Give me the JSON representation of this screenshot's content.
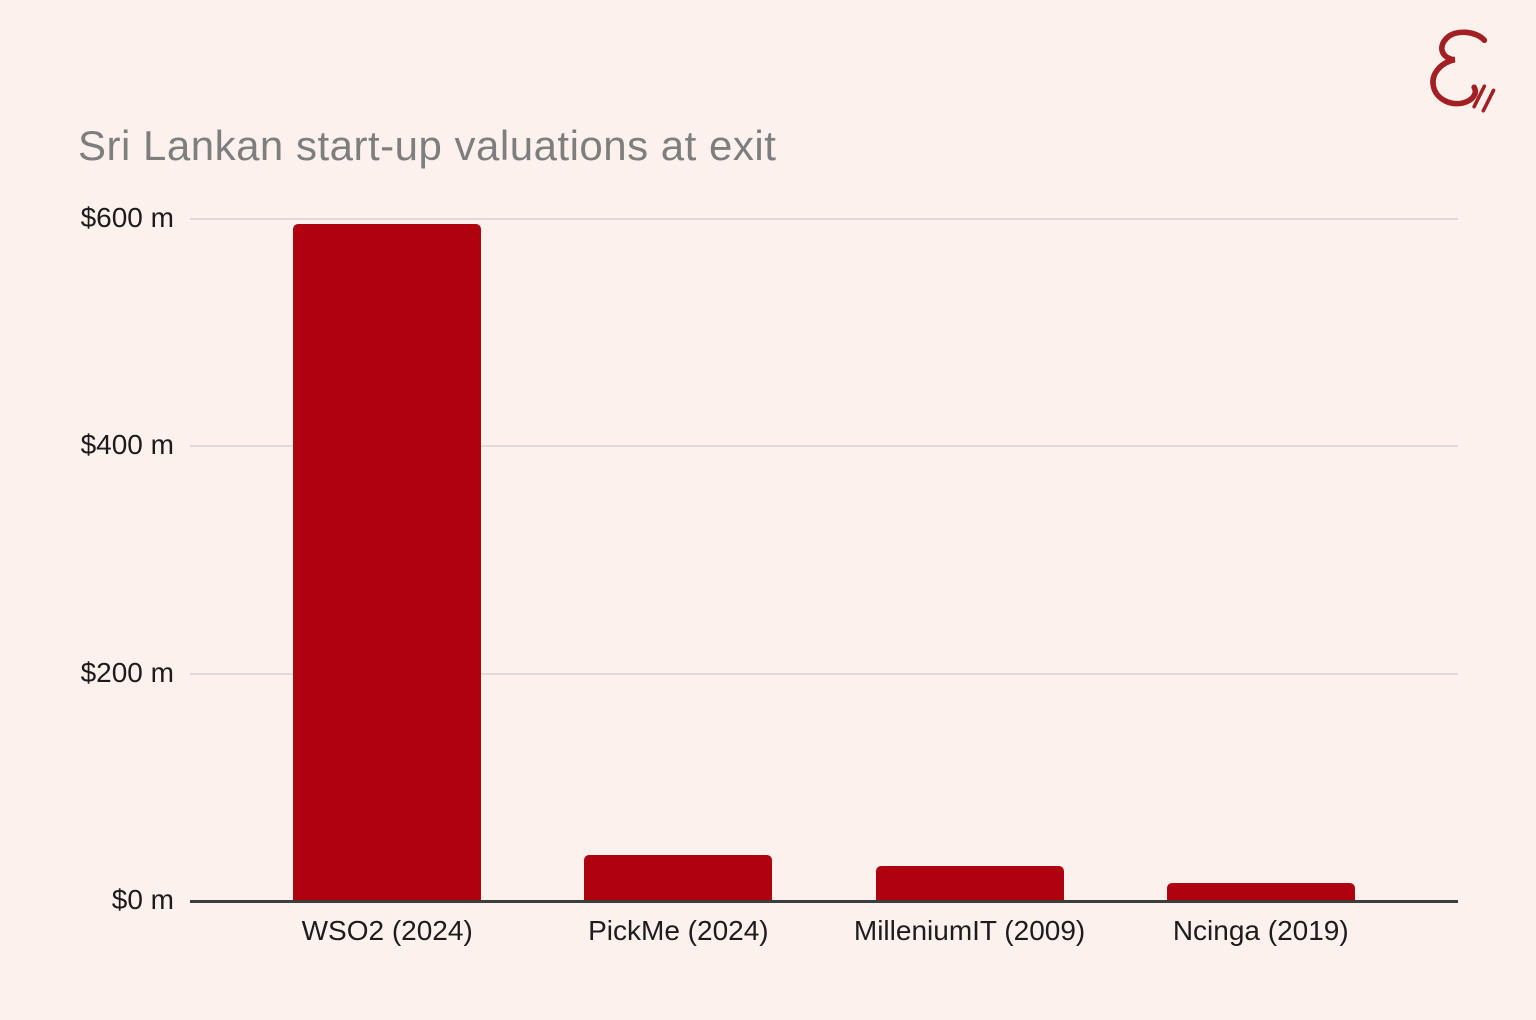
{
  "title": "Sri Lankan start-up valuations at exit",
  "logo": {
    "name": "echelon-script-e-logo",
    "color": "#a21f23"
  },
  "colors": {
    "background": "#fdf1ee",
    "bar": "#b0020e",
    "gridline": "#e0dbd9",
    "axis": "#3d3d3d",
    "title_text": "#7e7e7e",
    "tick_text": "#1c1c1c"
  },
  "chart_data": {
    "type": "bar",
    "title": "Sri Lankan start-up valuations at exit",
    "categories": [
      "WSO2 (2024)",
      "PickMe (2024)",
      "MilleniumIT (2009)",
      "Ncinga (2019)"
    ],
    "values": [
      595,
      40,
      30,
      15
    ],
    "unit": "$ m",
    "xlabel": "",
    "ylabel": "",
    "ylim": [
      0,
      600
    ],
    "yticks": [
      {
        "value": 600,
        "label": "$600 m"
      },
      {
        "value": 400,
        "label": "$400 m"
      },
      {
        "value": 200,
        "label": "$200 m"
      },
      {
        "value": 0,
        "label": "$0 m"
      }
    ],
    "grid": true,
    "legend": "none"
  }
}
